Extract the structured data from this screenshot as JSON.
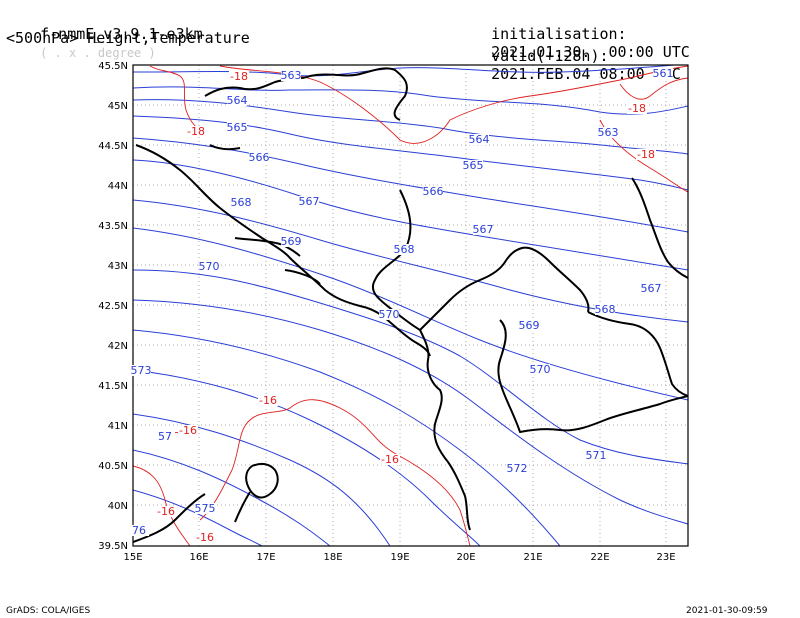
{
  "header": {
    "model": "f-nmmE_v3.9.1-e3km",
    "projection": "( . x . degree )",
    "product": "<500hPa> Height,Temperature",
    "init_label": "initialisation:",
    "init_time": "2021.01.30.  00:00 UTC",
    "valid_label": "valid(+128h):",
    "valid_time": "2021.FEB.04 08:00 UTC"
  },
  "axes": {
    "lon_labels": [
      "15E",
      "16E",
      "17E",
      "18E",
      "19E",
      "20E",
      "21E",
      "22E",
      "23E"
    ],
    "lat_labels": [
      "45.5N",
      "45N",
      "44.5N",
      "44N",
      "43.5N",
      "43N",
      "42.5N",
      "42N",
      "41.5N",
      "41N",
      "40.5N",
      "40N",
      "39.5N"
    ]
  },
  "colors": {
    "height_contour": "#2a3fd6",
    "temperature_contour": "#e02020",
    "coastline": "#000000",
    "grid": "#999999"
  },
  "height_labels": [
    {
      "text": "563"
    },
    {
      "text": "564"
    },
    {
      "text": "565"
    },
    {
      "text": "566"
    },
    {
      "text": "567"
    },
    {
      "text": "568"
    },
    {
      "text": "569"
    },
    {
      "text": "570"
    },
    {
      "text": "573"
    },
    {
      "text": "57"
    },
    {
      "text": "575"
    },
    {
      "text": "76"
    },
    {
      "text": "564"
    },
    {
      "text": "565"
    },
    {
      "text": "566"
    },
    {
      "text": "567"
    },
    {
      "text": "568"
    },
    {
      "text": "570"
    },
    {
      "text": "569"
    },
    {
      "text": "570"
    },
    {
      "text": "572"
    },
    {
      "text": "571"
    },
    {
      "text": "561"
    },
    {
      "text": "563"
    },
    {
      "text": "567"
    },
    {
      "text": "568"
    }
  ],
  "temp_labels": [
    {
      "text": "-18"
    },
    {
      "text": "-18"
    },
    {
      "text": "-18"
    },
    {
      "text": "-18"
    },
    {
      "text": "-16"
    },
    {
      "text": "-16"
    },
    {
      "text": "-16"
    },
    {
      "text": "-16"
    },
    {
      "text": "-16"
    }
  ],
  "footer": {
    "credit": "GrADS: COLA/IGES",
    "timestamp": "2021-01-30-09:59"
  }
}
